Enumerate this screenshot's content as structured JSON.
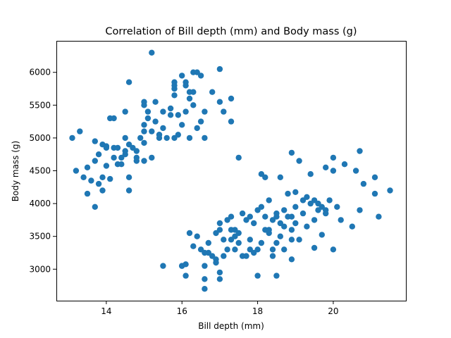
{
  "chart_data": {
    "type": "scatter",
    "title": "Correlation of Bill depth (mm) and Body mass (g)",
    "xlabel": "Bill depth (mm)",
    "ylabel": "Body mass (g)",
    "xlim": [
      12.68,
      21.92
    ],
    "ylim": [
      2520,
      6480
    ],
    "xticks": [
      14,
      16,
      18,
      20
    ],
    "yticks": [
      3000,
      3500,
      4000,
      4500,
      5000,
      5500,
      6000
    ],
    "xtick_labels": [
      "14",
      "16",
      "18",
      "20"
    ],
    "ytick_labels": [
      "3000",
      "3500",
      "4000",
      "4500",
      "5000",
      "5500",
      "6000"
    ],
    "grid": false,
    "marker_color": "#1f77b4",
    "series": [
      {
        "points": [
          [
            13.1,
            5000
          ],
          [
            13.2,
            4500
          ],
          [
            13.3,
            5100
          ],
          [
            13.4,
            4400
          ],
          [
            13.5,
            4550
          ],
          [
            13.5,
            4150
          ],
          [
            13.6,
            4350
          ],
          [
            13.7,
            4650
          ],
          [
            13.7,
            4950
          ],
          [
            13.7,
            3950
          ],
          [
            13.8,
            4300
          ],
          [
            13.8,
            4750
          ],
          [
            13.9,
            4900
          ],
          [
            13.9,
            4200
          ],
          [
            13.9,
            4400
          ],
          [
            14.0,
            4875
          ],
          [
            14.0,
            4575
          ],
          [
            14.1,
            4375
          ],
          [
            14.1,
            5300
          ],
          [
            14.2,
            4850
          ],
          [
            14.2,
            5300
          ],
          [
            14.2,
            4700
          ],
          [
            14.3,
            4850
          ],
          [
            14.3,
            4600
          ],
          [
            14.4,
            4600
          ],
          [
            14.4,
            4700
          ],
          [
            14.5,
            4800
          ],
          [
            14.5,
            5000
          ],
          [
            14.5,
            5400
          ],
          [
            14.5,
            4750
          ],
          [
            14.6,
            4900
          ],
          [
            14.6,
            4400
          ],
          [
            14.6,
            4200
          ],
          [
            14.6,
            5850
          ],
          [
            14.7,
            4850
          ],
          [
            14.8,
            4700
          ],
          [
            14.8,
            4650
          ],
          [
            14.9,
            5000
          ],
          [
            15.0,
            5200
          ],
          [
            15.0,
            5100
          ],
          [
            15.0,
            4925
          ],
          [
            15.1,
            5400
          ],
          [
            15.1,
            5300
          ],
          [
            15.2,
            5100
          ],
          [
            15.2,
            4700
          ],
          [
            15.2,
            6300
          ],
          [
            15.3,
            5550
          ],
          [
            15.3,
            5250
          ],
          [
            15.4,
            5050
          ],
          [
            15.5,
            5400
          ],
          [
            15.5,
            5150
          ],
          [
            15.6,
            5000
          ],
          [
            15.7,
            5350
          ],
          [
            15.7,
            5450
          ],
          [
            15.8,
            5000
          ],
          [
            15.8,
            5650
          ],
          [
            15.9,
            5350
          ],
          [
            15.9,
            5050
          ],
          [
            16.0,
            5950
          ],
          [
            16.0,
            5200
          ],
          [
            16.1,
            5400
          ],
          [
            16.1,
            5850
          ],
          [
            16.2,
            5000
          ],
          [
            16.3,
            5700
          ],
          [
            16.3,
            5500
          ],
          [
            16.4,
            5150
          ],
          [
            16.5,
            5950
          ],
          [
            16.6,
            5400
          ],
          [
            16.8,
            5700
          ],
          [
            17.0,
            6050
          ],
          [
            17.0,
            5550
          ],
          [
            17.1,
            5400
          ],
          [
            17.3,
            5600
          ],
          [
            17.3,
            5250
          ],
          [
            15.0,
            5550
          ],
          [
            15.0,
            5500
          ],
          [
            14.8,
            4800
          ],
          [
            15.0,
            4650
          ],
          [
            15.8,
            5750
          ],
          [
            15.8,
            5850
          ],
          [
            15.8,
            5800
          ],
          [
            15.4,
            5000
          ],
          [
            16.2,
            5600
          ],
          [
            16.2,
            5700
          ],
          [
            16.3,
            6000
          ],
          [
            16.4,
            6000
          ],
          [
            16.1,
            5800
          ],
          [
            16.5,
            5250
          ],
          [
            14.0,
            4850
          ],
          [
            15.4,
            5050
          ],
          [
            16.6,
            5000
          ]
        ]
      },
      {
        "points": [
          [
            15.5,
            3050
          ],
          [
            16.0,
            3050
          ],
          [
            16.1,
            3075
          ],
          [
            16.1,
            2900
          ],
          [
            16.2,
            3550
          ],
          [
            16.3,
            3350
          ],
          [
            16.4,
            3500
          ],
          [
            16.5,
            3300
          ],
          [
            16.6,
            2700
          ],
          [
            16.6,
            3050
          ],
          [
            16.6,
            2850
          ],
          [
            16.7,
            3400
          ],
          [
            16.7,
            3250
          ],
          [
            16.8,
            3200
          ],
          [
            16.9,
            3150
          ],
          [
            17.0,
            2950
          ],
          [
            17.0,
            3600
          ],
          [
            17.0,
            3700
          ],
          [
            17.1,
            3200
          ],
          [
            17.1,
            3450
          ],
          [
            17.2,
            3750
          ],
          [
            17.2,
            3300
          ],
          [
            17.3,
            3450
          ],
          [
            17.3,
            3800
          ],
          [
            17.4,
            3600
          ],
          [
            17.4,
            3300
          ],
          [
            17.5,
            3550
          ],
          [
            17.5,
            3400
          ],
          [
            17.6,
            3200
          ],
          [
            17.7,
            3750
          ],
          [
            17.8,
            3800
          ],
          [
            17.8,
            3450
          ],
          [
            17.9,
            3250
          ],
          [
            17.9,
            3700
          ],
          [
            18.0,
            3900
          ],
          [
            18.0,
            3300
          ],
          [
            18.1,
            3950
          ],
          [
            18.1,
            3400
          ],
          [
            18.2,
            3600
          ],
          [
            18.2,
            3800
          ],
          [
            18.3,
            3550
          ],
          [
            18.3,
            4050
          ],
          [
            18.4,
            3750
          ],
          [
            18.4,
            3300
          ],
          [
            18.5,
            3800
          ],
          [
            18.5,
            3400
          ],
          [
            18.6,
            3700
          ],
          [
            18.6,
            4400
          ],
          [
            18.7,
            3650
          ],
          [
            18.7,
            3900
          ],
          [
            18.8,
            3800
          ],
          [
            18.8,
            4150
          ],
          [
            18.9,
            3800
          ],
          [
            18.9,
            3600
          ],
          [
            19.0,
            3950
          ],
          [
            19.0,
            3700
          ],
          [
            19.1,
            4650
          ],
          [
            19.1,
            3450
          ],
          [
            19.2,
            3850
          ],
          [
            19.2,
            4050
          ],
          [
            19.3,
            3650
          ],
          [
            19.3,
            4100
          ],
          [
            19.4,
            4000
          ],
          [
            19.5,
            4050
          ],
          [
            19.5,
            3750
          ],
          [
            19.6,
            4000
          ],
          [
            19.7,
            3950
          ],
          [
            19.8,
            3900
          ],
          [
            19.9,
            4050
          ],
          [
            20.0,
            3300
          ],
          [
            20.0,
            4700
          ],
          [
            20.1,
            3950
          ],
          [
            20.2,
            3750
          ],
          [
            20.3,
            4600
          ],
          [
            20.5,
            3650
          ],
          [
            20.6,
            4500
          ],
          [
            20.7,
            3900
          ],
          [
            20.8,
            4300
          ],
          [
            21.1,
            4150
          ],
          [
            21.2,
            3800
          ],
          [
            21.5,
            4200
          ],
          [
            18.9,
            4775
          ],
          [
            18.5,
            2900
          ],
          [
            18.0,
            2900
          ],
          [
            16.0,
            3050
          ],
          [
            19.4,
            4450
          ],
          [
            20.7,
            4800
          ],
          [
            21.1,
            4400
          ],
          [
            20.0,
            4500
          ],
          [
            19.8,
            4550
          ],
          [
            19.0,
            4175
          ],
          [
            18.1,
            4450
          ],
          [
            18.2,
            4400
          ],
          [
            17.5,
            4700
          ],
          [
            16.6,
            3250
          ],
          [
            16.9,
            3100
          ],
          [
            17.0,
            2850
          ],
          [
            17.3,
            3600
          ],
          [
            17.6,
            3850
          ],
          [
            18.3,
            3600
          ],
          [
            18.5,
            3850
          ],
          [
            18.7,
            3300
          ],
          [
            19.5,
            3325
          ],
          [
            19.7,
            3525
          ],
          [
            19.6,
            3900
          ],
          [
            18.4,
            3200
          ],
          [
            18.9,
            3150
          ],
          [
            19.8,
            3850
          ],
          [
            17.7,
            3200
          ],
          [
            17.4,
            3500
          ],
          [
            16.9,
            3550
          ],
          [
            17.8,
            3300
          ],
          [
            18.6,
            3500
          ],
          [
            18.9,
            3450
          ]
        ]
      }
    ]
  }
}
